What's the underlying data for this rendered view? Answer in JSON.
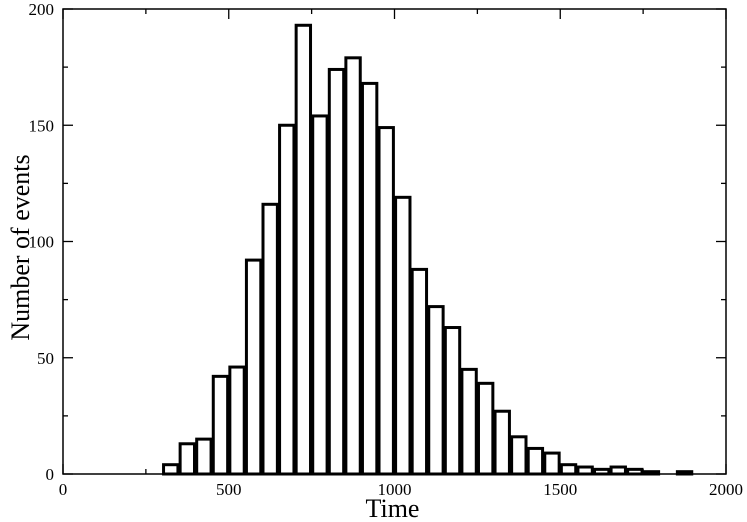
{
  "chart_data": {
    "type": "bar",
    "title": "",
    "xlabel": "Time",
    "ylabel": "Number of events",
    "xlim": [
      0,
      2000
    ],
    "ylim": [
      0,
      200
    ],
    "x_ticks": [
      0,
      500,
      1000,
      1500,
      2000
    ],
    "y_ticks": [
      0,
      50,
      100,
      150,
      200
    ],
    "x_minor_step": 250,
    "y_minor_step": 25,
    "bin_width": 50,
    "grid": false,
    "legend": "none",
    "series": [
      {
        "bin_starts": [
          300,
          350,
          400,
          450,
          500,
          550,
          600,
          650,
          700,
          750,
          800,
          850,
          900,
          950,
          1000,
          1050,
          1100,
          1150,
          1200,
          1250,
          1300,
          1350,
          1400,
          1450,
          1500,
          1550,
          1600,
          1650,
          1700,
          1750,
          1800,
          1850
        ],
        "values": [
          4,
          13,
          15,
          42,
          46,
          92,
          116,
          150,
          193,
          154,
          174,
          179,
          168,
          149,
          119,
          88,
          72,
          63,
          45,
          39,
          27,
          16,
          11,
          9,
          4,
          3,
          2,
          3,
          2,
          1,
          0,
          1
        ]
      }
    ],
    "colors": {
      "bar_fill": "#ffffff",
      "bar_stroke": "#000000",
      "axis": "#000000"
    }
  }
}
